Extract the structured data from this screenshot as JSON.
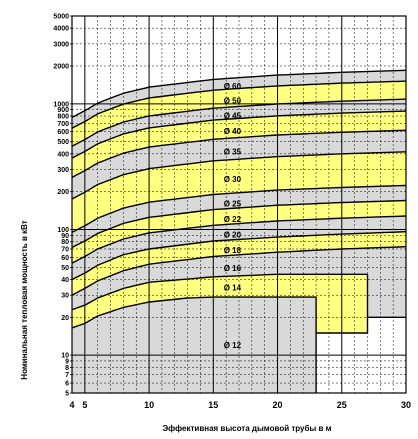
{
  "chart_data": {
    "type": "area",
    "xlabel": "Эффективная высота дымовой трубы в м",
    "ylabel": "Номинальная тепловая мощность в кВт",
    "x_scale": "linear",
    "y_scale": "log",
    "xlim": [
      4,
      30
    ],
    "ylim": [
      5,
      5000
    ],
    "x_ticks": [
      "4",
      "5",
      "10",
      "15",
      "20",
      "25",
      "30"
    ],
    "y_ticks": [
      "5",
      "6",
      "7",
      "8",
      "9",
      "10",
      "20",
      "30",
      "40",
      "50",
      "60",
      "70",
      "80",
      "90",
      "100",
      "200",
      "300",
      "400",
      "500",
      "600",
      "700",
      "800",
      "900",
      "1000",
      "2000",
      "3000",
      "4000",
      "5000"
    ],
    "grid": true,
    "colors": {
      "grey": "#d9d9d9",
      "yellow": "#ffff80",
      "line": "#000000"
    },
    "bands": [
      {
        "name": "Ø 12",
        "color": "grey",
        "lower": [
          [
            4,
            5
          ],
          [
            23,
            5
          ],
          [
            23,
            5
          ]
        ],
        "upper": [
          [
            4,
            16.5
          ],
          [
            5,
            17.9
          ],
          [
            6,
            20.5
          ],
          [
            8,
            24
          ],
          [
            10,
            26.5
          ],
          [
            13,
            28.5
          ],
          [
            15,
            29
          ],
          [
            23,
            29
          ]
        ]
      },
      {
        "name": "Ø 14",
        "color": "yellow",
        "lower": [
          [
            4,
            16.5
          ],
          [
            5,
            17.9
          ],
          [
            6,
            20.5
          ],
          [
            8,
            24
          ],
          [
            10,
            26.5
          ],
          [
            13,
            28.5
          ],
          [
            15,
            29
          ],
          [
            23,
            29
          ],
          [
            23,
            15
          ],
          [
            27,
            15
          ],
          [
            27,
            15
          ]
        ],
        "upper": [
          [
            4,
            23
          ],
          [
            5,
            25
          ],
          [
            6,
            28.5
          ],
          [
            8,
            34
          ],
          [
            10,
            38
          ],
          [
            15,
            42
          ],
          [
            20,
            44
          ],
          [
            27,
            44
          ]
        ]
      },
      {
        "name": "Ø 16",
        "color": "grey",
        "lower": [
          [
            4,
            23
          ],
          [
            5,
            25
          ],
          [
            6,
            28.5
          ],
          [
            8,
            34
          ],
          [
            10,
            38
          ],
          [
            15,
            42
          ],
          [
            20,
            44
          ],
          [
            27,
            44
          ],
          [
            27,
            20
          ],
          [
            30,
            20
          ]
        ],
        "upper": [
          [
            4,
            30
          ],
          [
            5,
            34
          ],
          [
            6,
            39
          ],
          [
            8,
            47
          ],
          [
            10,
            53
          ],
          [
            15,
            61
          ],
          [
            20,
            66
          ],
          [
            25,
            70
          ],
          [
            30,
            73
          ]
        ]
      },
      {
        "name": "Ø 18",
        "color": "yellow",
        "lower": [
          [
            4,
            30
          ],
          [
            5,
            34
          ],
          [
            6,
            39
          ],
          [
            8,
            47
          ],
          [
            10,
            53
          ],
          [
            15,
            61
          ],
          [
            20,
            66
          ],
          [
            25,
            70
          ],
          [
            30,
            73
          ]
        ],
        "upper": [
          [
            4,
            40
          ],
          [
            5,
            45
          ],
          [
            6,
            52
          ],
          [
            8,
            63
          ],
          [
            10,
            70
          ],
          [
            15,
            81
          ],
          [
            20,
            87
          ],
          [
            25,
            92
          ],
          [
            30,
            96
          ]
        ]
      },
      {
        "name": "Ø 20",
        "color": "grey",
        "lower": [
          [
            4,
            40
          ],
          [
            5,
            45
          ],
          [
            6,
            52
          ],
          [
            8,
            63
          ],
          [
            10,
            70
          ],
          [
            15,
            81
          ],
          [
            20,
            87
          ],
          [
            25,
            92
          ],
          [
            30,
            96
          ]
        ],
        "upper": [
          [
            4,
            54
          ],
          [
            5,
            61
          ],
          [
            6,
            70
          ],
          [
            8,
            84
          ],
          [
            10,
            94
          ],
          [
            15,
            108
          ],
          [
            20,
            117
          ],
          [
            25,
            123
          ],
          [
            30,
            128
          ]
        ]
      },
      {
        "name": "Ø 22",
        "color": "yellow",
        "lower": [
          [
            4,
            54
          ],
          [
            5,
            61
          ],
          [
            6,
            70
          ],
          [
            8,
            84
          ],
          [
            10,
            94
          ],
          [
            15,
            108
          ],
          [
            20,
            117
          ],
          [
            25,
            123
          ],
          [
            30,
            128
          ]
        ],
        "upper": [
          [
            4,
            72
          ],
          [
            5,
            81
          ],
          [
            6,
            93
          ],
          [
            8,
            112
          ],
          [
            10,
            125
          ],
          [
            15,
            144
          ],
          [
            20,
            156
          ],
          [
            25,
            164
          ],
          [
            30,
            170
          ]
        ]
      },
      {
        "name": "Ø 25",
        "color": "grey",
        "lower": [
          [
            4,
            72
          ],
          [
            5,
            81
          ],
          [
            6,
            93
          ],
          [
            8,
            112
          ],
          [
            10,
            125
          ],
          [
            15,
            144
          ],
          [
            20,
            156
          ],
          [
            25,
            164
          ],
          [
            30,
            170
          ]
        ],
        "upper": [
          [
            4,
            95
          ],
          [
            5,
            107
          ],
          [
            6,
            123
          ],
          [
            8,
            148
          ],
          [
            10,
            165
          ],
          [
            15,
            190
          ],
          [
            20,
            206
          ],
          [
            25,
            216
          ],
          [
            30,
            224
          ]
        ]
      },
      {
        "name": "Ø 30",
        "color": "yellow",
        "lower": [
          [
            4,
            95
          ],
          [
            5,
            107
          ],
          [
            6,
            123
          ],
          [
            8,
            148
          ],
          [
            10,
            165
          ],
          [
            15,
            190
          ],
          [
            20,
            206
          ],
          [
            25,
            216
          ],
          [
            30,
            224
          ]
        ],
        "upper": [
          [
            4,
            175
          ],
          [
            5,
            198
          ],
          [
            6,
            228
          ],
          [
            8,
            273
          ],
          [
            10,
            305
          ],
          [
            15,
            352
          ],
          [
            20,
            380
          ],
          [
            25,
            400
          ],
          [
            30,
            415
          ]
        ]
      },
      {
        "name": "Ø 35",
        "color": "grey",
        "lower": [
          [
            4,
            175
          ],
          [
            5,
            198
          ],
          [
            6,
            228
          ],
          [
            8,
            273
          ],
          [
            10,
            305
          ],
          [
            15,
            352
          ],
          [
            20,
            380
          ],
          [
            25,
            400
          ],
          [
            30,
            415
          ]
        ],
        "upper": [
          [
            4,
            260
          ],
          [
            5,
            294
          ],
          [
            6,
            338
          ],
          [
            8,
            405
          ],
          [
            10,
            453
          ],
          [
            15,
            522
          ],
          [
            20,
            565
          ],
          [
            25,
            594
          ],
          [
            30,
            616
          ]
        ]
      },
      {
        "name": "Ø 40",
        "color": "yellow",
        "lower": [
          [
            4,
            260
          ],
          [
            5,
            294
          ],
          [
            6,
            338
          ],
          [
            8,
            405
          ],
          [
            10,
            453
          ],
          [
            15,
            522
          ],
          [
            20,
            565
          ],
          [
            25,
            594
          ],
          [
            30,
            616
          ]
        ],
        "upper": [
          [
            4,
            370
          ],
          [
            5,
            418
          ],
          [
            6,
            481
          ],
          [
            8,
            576
          ],
          [
            10,
            644
          ],
          [
            15,
            742
          ],
          [
            20,
            803
          ],
          [
            25,
            844
          ],
          [
            30,
            876
          ]
        ]
      },
      {
        "name": "Ø 45",
        "color": "grey",
        "lower": [
          [
            4,
            370
          ],
          [
            5,
            418
          ],
          [
            6,
            481
          ],
          [
            8,
            576
          ],
          [
            10,
            644
          ],
          [
            15,
            742
          ],
          [
            20,
            803
          ],
          [
            25,
            844
          ],
          [
            30,
            876
          ]
        ],
        "upper": [
          [
            4,
            460
          ],
          [
            5,
            520
          ],
          [
            6,
            598
          ],
          [
            8,
            716
          ],
          [
            10,
            801
          ],
          [
            15,
            923
          ],
          [
            20,
            998
          ],
          [
            25,
            1050
          ],
          [
            30,
            1090
          ]
        ]
      },
      {
        "name": "Ø 50",
        "color": "yellow",
        "lower": [
          [
            4,
            460
          ],
          [
            5,
            520
          ],
          [
            6,
            598
          ],
          [
            8,
            716
          ],
          [
            10,
            801
          ],
          [
            15,
            923
          ],
          [
            20,
            998
          ],
          [
            25,
            1050
          ],
          [
            30,
            1090
          ]
        ],
        "upper": [
          [
            4,
            640
          ],
          [
            5,
            723
          ],
          [
            6,
            832
          ],
          [
            8,
            996
          ],
          [
            10,
            1114
          ],
          [
            15,
            1284
          ],
          [
            20,
            1389
          ],
          [
            25,
            1461
          ],
          [
            30,
            1516
          ]
        ]
      },
      {
        "name": "Ø 60",
        "color": "grey",
        "lower": [
          [
            4,
            640
          ],
          [
            5,
            723
          ],
          [
            6,
            832
          ],
          [
            8,
            996
          ],
          [
            10,
            1114
          ],
          [
            15,
            1284
          ],
          [
            20,
            1389
          ],
          [
            25,
            1461
          ],
          [
            30,
            1516
          ]
        ],
        "upper": [
          [
            4,
            780
          ],
          [
            5,
            882
          ],
          [
            6,
            1014
          ],
          [
            8,
            1214
          ],
          [
            10,
            1358
          ],
          [
            15,
            1565
          ],
          [
            20,
            1693
          ],
          [
            25,
            1781
          ],
          [
            30,
            1848
          ]
        ]
      }
    ]
  }
}
